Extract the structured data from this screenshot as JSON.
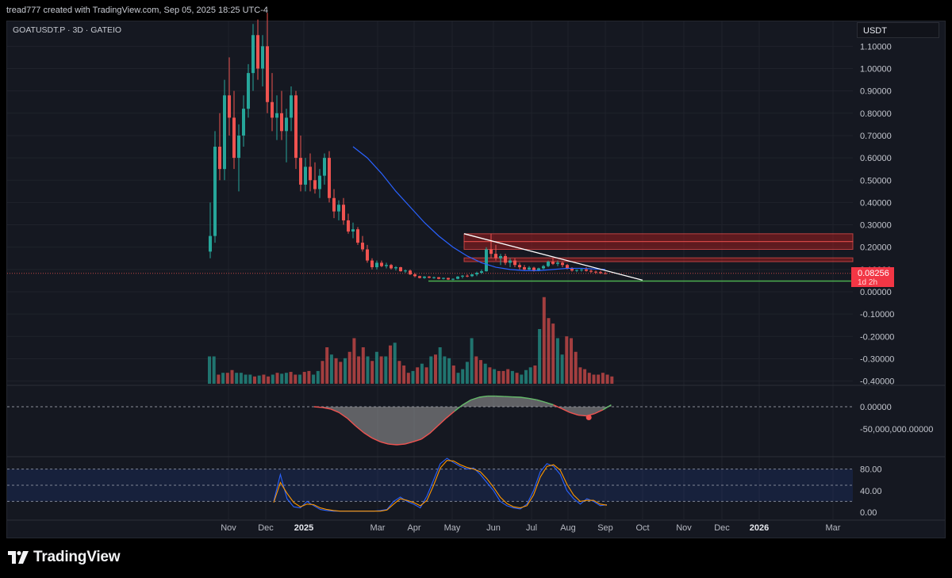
{
  "header": {
    "attribution": "tread777 created with TradingView.com, Sep 05, 2025 18:25 UTC-4"
  },
  "symbol": {
    "label": "GOATUSDT.P · 3D · GATEIO"
  },
  "currency_badge": "USDT",
  "brand": {
    "name": "TradingView"
  },
  "colors": {
    "background": "#151821",
    "bull": "#26a69a",
    "bear": "#ef5350",
    "ma": "#2962ff",
    "trendline": "#ffffff",
    "support": "#4caf50",
    "resistance_zone": "#b71c1c",
    "stoch_k": "#2962ff",
    "stoch_d": "#ff9800",
    "price_badge": "#f23645"
  },
  "last_price": {
    "value": "0.08256",
    "countdown": "1d 2h"
  },
  "chart_data": [
    {
      "type": "candlestick",
      "pane": "price",
      "y_ticks": [
        "1.10000",
        "1.00000",
        "0.90000",
        "0.80000",
        "0.70000",
        "0.60000",
        "0.50000",
        "0.40000",
        "0.30000",
        "0.20000",
        "0.10000",
        "0.00000",
        "-0.10000",
        "-0.20000",
        "-0.30000",
        "-0.40000"
      ],
      "ylim": [
        -0.43,
        1.2
      ],
      "x_ticks": [
        "Nov",
        "Dec",
        "2025",
        "Mar",
        "Apr",
        "May",
        "Jun",
        "Jul",
        "Aug",
        "Sep",
        "Oct",
        "Nov",
        "Dec",
        "2026",
        "Mar"
      ],
      "candles": [
        [
          0.18,
          0.4,
          0.15,
          0.25
        ],
        [
          0.25,
          0.72,
          0.22,
          0.65
        ],
        [
          0.65,
          0.8,
          0.5,
          0.55
        ],
        [
          0.55,
          0.95,
          0.5,
          0.88
        ],
        [
          0.88,
          1.05,
          0.7,
          0.78
        ],
        [
          0.78,
          0.9,
          0.55,
          0.6
        ],
        [
          0.6,
          0.75,
          0.45,
          0.7
        ],
        [
          0.7,
          0.88,
          0.65,
          0.82
        ],
        [
          0.82,
          1.02,
          0.78,
          0.98
        ],
        [
          0.98,
          1.2,
          0.9,
          1.15
        ],
        [
          1.15,
          1.22,
          0.95,
          1.0
        ],
        [
          1.0,
          1.15,
          0.92,
          1.1
        ],
        [
          1.1,
          1.25,
          0.8,
          0.85
        ],
        [
          0.85,
          0.98,
          0.72,
          0.78
        ],
        [
          0.78,
          0.88,
          0.68,
          0.8
        ],
        [
          0.8,
          0.9,
          0.68,
          0.72
        ],
        [
          0.72,
          0.82,
          0.58,
          0.78
        ],
        [
          0.78,
          0.92,
          0.72,
          0.88
        ],
        [
          0.88,
          0.9,
          0.55,
          0.6
        ],
        [
          0.6,
          0.7,
          0.45,
          0.48
        ],
        [
          0.48,
          0.6,
          0.45,
          0.56
        ],
        [
          0.56,
          0.62,
          0.45,
          0.5
        ],
        [
          0.5,
          0.58,
          0.44,
          0.46
        ],
        [
          0.46,
          0.55,
          0.42,
          0.52
        ],
        [
          0.52,
          0.62,
          0.48,
          0.6
        ],
        [
          0.6,
          0.63,
          0.4,
          0.42
        ],
        [
          0.42,
          0.46,
          0.33,
          0.36
        ],
        [
          0.36,
          0.41,
          0.32,
          0.39
        ],
        [
          0.39,
          0.42,
          0.3,
          0.32
        ],
        [
          0.32,
          0.35,
          0.26,
          0.27
        ],
        [
          0.27,
          0.31,
          0.24,
          0.28
        ],
        [
          0.28,
          0.29,
          0.21,
          0.22
        ],
        [
          0.22,
          0.25,
          0.18,
          0.19
        ],
        [
          0.19,
          0.21,
          0.13,
          0.14
        ],
        [
          0.14,
          0.15,
          0.1,
          0.11
        ],
        [
          0.11,
          0.14,
          0.1,
          0.13
        ],
        [
          0.13,
          0.14,
          0.11,
          0.115
        ],
        [
          0.115,
          0.13,
          0.105,
          0.12
        ],
        [
          0.12,
          0.125,
          0.1,
          0.105
        ],
        [
          0.105,
          0.115,
          0.095,
          0.11
        ],
        [
          0.11,
          0.112,
          0.09,
          0.092
        ],
        [
          0.092,
          0.1,
          0.085,
          0.095
        ],
        [
          0.095,
          0.1,
          0.075,
          0.078
        ],
        [
          0.078,
          0.085,
          0.065,
          0.07
        ],
        [
          0.07,
          0.072,
          0.06,
          0.062
        ],
        [
          0.062,
          0.07,
          0.058,
          0.068
        ],
        [
          0.068,
          0.07,
          0.06,
          0.063
        ],
        [
          0.063,
          0.068,
          0.058,
          0.065
        ],
        [
          0.065,
          0.066,
          0.056,
          0.058
        ],
        [
          0.058,
          0.064,
          0.055,
          0.062
        ],
        [
          0.062,
          0.063,
          0.053,
          0.055
        ],
        [
          0.055,
          0.06,
          0.052,
          0.058
        ],
        [
          0.058,
          0.07,
          0.056,
          0.068
        ],
        [
          0.068,
          0.075,
          0.06,
          0.072
        ],
        [
          0.072,
          0.078,
          0.065,
          0.07
        ],
        [
          0.07,
          0.08,
          0.066,
          0.078
        ],
        [
          0.078,
          0.09,
          0.07,
          0.085
        ],
        [
          0.085,
          0.1,
          0.08,
          0.092
        ],
        [
          0.092,
          0.2,
          0.09,
          0.19
        ],
        [
          0.19,
          0.26,
          0.15,
          0.17
        ],
        [
          0.17,
          0.21,
          0.14,
          0.15
        ],
        [
          0.15,
          0.17,
          0.12,
          0.16
        ],
        [
          0.16,
          0.17,
          0.12,
          0.13
        ],
        [
          0.13,
          0.15,
          0.11,
          0.14
        ],
        [
          0.14,
          0.15,
          0.11,
          0.12
        ],
        [
          0.12,
          0.13,
          0.1,
          0.11
        ],
        [
          0.11,
          0.12,
          0.095,
          0.1
        ],
        [
          0.1,
          0.115,
          0.095,
          0.108
        ],
        [
          0.108,
          0.112,
          0.09,
          0.095
        ],
        [
          0.095,
          0.108,
          0.092,
          0.105
        ],
        [
          0.105,
          0.12,
          0.1,
          0.115
        ],
        [
          0.115,
          0.14,
          0.11,
          0.135
        ],
        [
          0.135,
          0.15,
          0.12,
          0.125
        ],
        [
          0.125,
          0.14,
          0.115,
          0.13
        ],
        [
          0.13,
          0.135,
          0.11,
          0.12
        ],
        [
          0.12,
          0.125,
          0.1,
          0.105
        ],
        [
          0.105,
          0.11,
          0.09,
          0.095
        ],
        [
          0.095,
          0.1,
          0.088,
          0.098
        ],
        [
          0.098,
          0.105,
          0.09,
          0.1
        ],
        [
          0.1,
          0.11,
          0.09,
          0.094
        ],
        [
          0.094,
          0.1,
          0.085,
          0.09
        ],
        [
          0.09,
          0.095,
          0.08,
          0.088
        ],
        [
          0.088,
          0.094,
          0.08,
          0.083
        ],
        [
          0.083,
          0.09,
          0.079,
          0.0826
        ]
      ],
      "ma_line": [
        [
          30,
          0.65
        ],
        [
          33,
          0.6
        ],
        [
          36,
          0.53
        ],
        [
          39,
          0.45
        ],
        [
          42,
          0.38
        ],
        [
          45,
          0.31
        ],
        [
          48,
          0.25
        ],
        [
          51,
          0.2
        ],
        [
          54,
          0.16
        ],
        [
          57,
          0.13
        ],
        [
          60,
          0.11
        ],
        [
          63,
          0.1
        ],
        [
          66,
          0.095
        ],
        [
          69,
          0.095
        ],
        [
          72,
          0.1
        ],
        [
          75,
          0.105
        ],
        [
          78,
          0.105
        ],
        [
          83,
          0.1
        ]
      ],
      "trendline": {
        "from": [
          58.5,
          0.26
        ],
        "to": [
          100,
          0.052
        ]
      },
      "support_level": 0.048,
      "resistance_zones": [
        [
          0.225,
          0.26
        ],
        [
          0.19,
          0.225
        ],
        [
          0.135,
          0.152
        ]
      ],
      "current_price": 0.08256
    },
    {
      "type": "bar",
      "pane": "volume",
      "relative_values": [
        0.3,
        0.3,
        0.1,
        0.12,
        0.12,
        0.15,
        0.12,
        0.12,
        0.1,
        0.1,
        0.08,
        0.09,
        0.1,
        0.08,
        0.1,
        0.12,
        0.11,
        0.12,
        0.13,
        0.1,
        0.1,
        0.13,
        0.14,
        0.1,
        0.14,
        0.25,
        0.4,
        0.32,
        0.28,
        0.24,
        0.28,
        0.35,
        0.5,
        0.3,
        0.4,
        0.3,
        0.25,
        0.35,
        0.3,
        0.3,
        0.42,
        0.45,
        0.25,
        0.2,
        0.12,
        0.14,
        0.18,
        0.22,
        0.18,
        0.3,
        0.32,
        0.4,
        0.3,
        0.28,
        0.2,
        0.12,
        0.16,
        0.24,
        0.5,
        0.3,
        0.26,
        0.22,
        0.18,
        0.16,
        0.14,
        0.14,
        0.16,
        0.14,
        0.12,
        0.1,
        0.15,
        0.18,
        0.2,
        0.6,
        0.95,
        0.72,
        0.66,
        0.5,
        0.32,
        0.52,
        0.5,
        0.35,
        0.18,
        0.16,
        0.12,
        0.1,
        0.1,
        0.12,
        0.1,
        0.08
      ]
    },
    {
      "type": "area",
      "pane": "oscillator",
      "y_ticks": [
        "0.00000",
        "-50,000,000.00000"
      ],
      "values": [
        0,
        -0.02,
        -0.06,
        -0.15,
        -0.3,
        -0.5,
        -0.68,
        -0.82,
        -0.92,
        -0.98,
        -1.0,
        -0.98,
        -0.92,
        -0.85,
        -0.7,
        -0.5,
        -0.3,
        -0.12,
        0.05,
        0.18,
        0.25,
        0.28,
        0.28,
        0.27,
        0.26,
        0.25,
        0.22,
        0.18,
        0.12,
        0.05,
        -0.05,
        -0.15,
        -0.22,
        -0.24,
        -0.18,
        -0.08,
        0.05
      ]
    },
    {
      "type": "line",
      "pane": "stochastic",
      "y_ticks": [
        "80.00",
        "40.00",
        "0.00"
      ],
      "ylim": [
        0,
        100
      ],
      "band": [
        20,
        80
      ],
      "series": [
        {
          "values": [
            20,
            70,
            25,
            10,
            8,
            20,
            12,
            5,
            3,
            2,
            2,
            2,
            2,
            2,
            2,
            2,
            3,
            5,
            20,
            28,
            20,
            15,
            8,
            30,
            60,
            90,
            100,
            92,
            85,
            80,
            82,
            70,
            55,
            40,
            20,
            12,
            8,
            6,
            15,
            40,
            75,
            90,
            85,
            70,
            40,
            25,
            15,
            25,
            20,
            12,
            14
          ]
        },
        {
          "values": [
            18,
            55,
            35,
            18,
            10,
            15,
            14,
            8,
            5,
            3,
            2,
            2,
            2,
            2,
            2,
            2,
            2,
            4,
            15,
            25,
            22,
            18,
            12,
            22,
            50,
            82,
            96,
            95,
            88,
            83,
            80,
            75,
            62,
            46,
            28,
            16,
            10,
            8,
            12,
            32,
            65,
            85,
            88,
            78,
            52,
            32,
            20,
            22,
            22,
            15,
            13
          ]
        }
      ]
    }
  ]
}
